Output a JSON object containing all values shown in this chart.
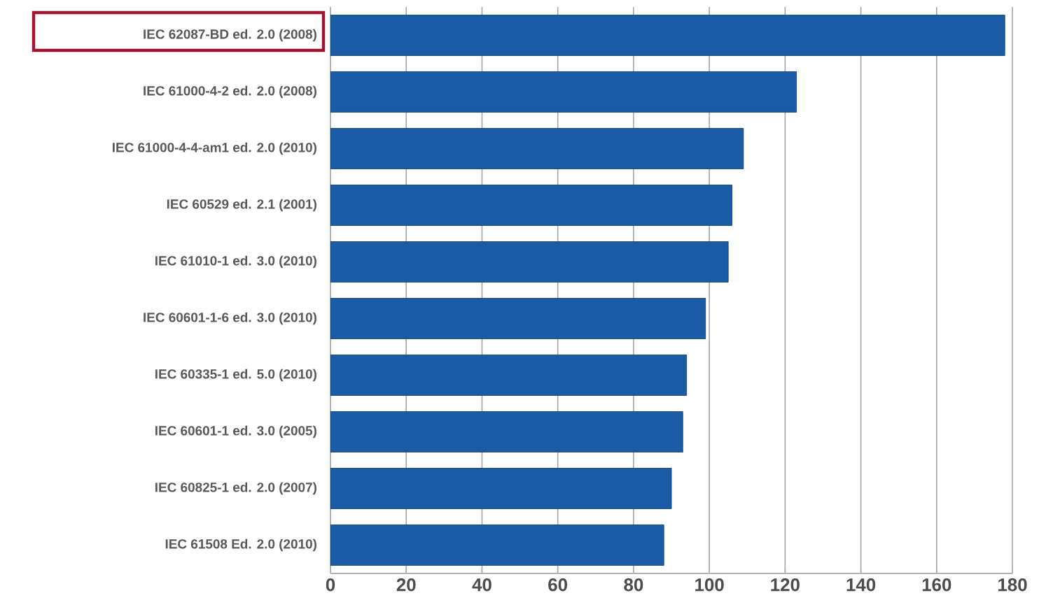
{
  "chart_data": {
    "type": "bar",
    "orientation": "horizontal",
    "categories": [
      "IEC 62087-BD ed. 2.0 (2008)",
      "IEC 61000-4-2 ed. 2.0 (2008)",
      "IEC 61000-4-4-am1 ed. 2.0 (2010)",
      "IEC 60529 ed. 2.1 (2001)",
      "IEC 61010-1 ed. 3.0 (2010)",
      "IEC 60601-1-6 ed. 3.0 (2010)",
      "IEC 60335-1 ed. 5.0 (2010)",
      "IEC 60601-1 ed. 3.0 (2005)",
      "IEC 60825-1 ed. 2.0 (2007)",
      "IEC 61508 Ed. 2.0 (2010)"
    ],
    "values": [
      178,
      123,
      109,
      106,
      105,
      99,
      94,
      93,
      90,
      88
    ],
    "color": "#1a5ba6",
    "xlim": [
      0,
      180
    ],
    "xticks": [
      0,
      20,
      40,
      60,
      80,
      100,
      120,
      140,
      160,
      180
    ],
    "grid": "x"
  }
}
